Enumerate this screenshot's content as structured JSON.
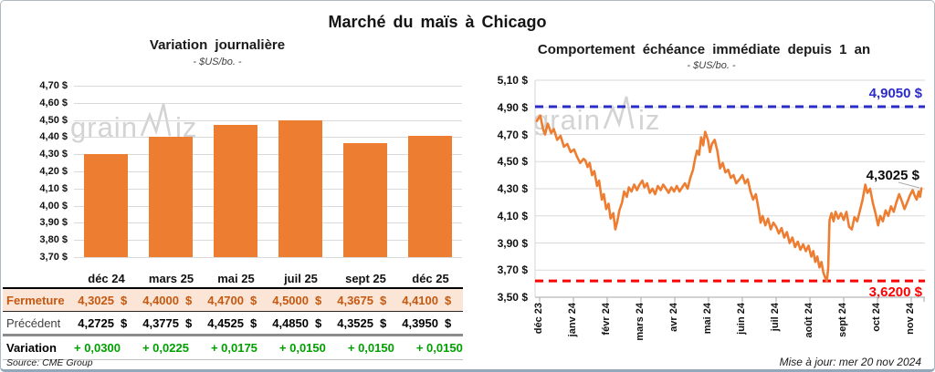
{
  "page": {
    "title": "Marché du maïs à Chicago",
    "source": "Source: CME Group",
    "updated": "Mise à jour: mer 20 nov 2024",
    "watermark": {
      "prefix": "grain",
      "suffix": "iz"
    }
  },
  "colors": {
    "orange": "#ED7D31",
    "blue": "#2B2BC8",
    "red": "#FF0000",
    "green": "#00A000",
    "brown": "#C45911",
    "peach": "#FBE5D6",
    "gridline": "#DADADA",
    "axis": "#A6A6A6",
    "watermark": "#CFCFCF"
  },
  "chart_data": [
    {
      "type": "bar",
      "title": "Variation journalière",
      "subtitle": "- $US/bo. -",
      "categories": [
        "déc 24",
        "mars 25",
        "mai 25",
        "juil 25",
        "sept 25",
        "déc 25"
      ],
      "values": [
        4.3025,
        4.4,
        4.47,
        4.5,
        4.3675,
        4.41
      ],
      "ylabel": "$US/bo.",
      "ylim": [
        3.7,
        4.7
      ],
      "ytick_step": 0.1,
      "grid": true
    },
    {
      "type": "line",
      "title": "Comportement échéance immédiate depuis 1 an",
      "subtitle": "- $US/bo. -",
      "ylabel": "$US/bo.",
      "ylim": [
        3.5,
        5.1
      ],
      "ytick_step": 0.2,
      "x_labels": [
        "déc 23",
        "janv 24",
        "févr 24",
        "mars 24",
        "avr 24",
        "mai 24",
        "juin 24",
        "juil 24",
        "août 24",
        "sept 24",
        "oct 24",
        "nov 24"
      ],
      "last_value": 4.3025,
      "last_label": "4,3025 $",
      "ref_lines": [
        {
          "value": 4.905,
          "label": "4,9050 $",
          "color": "#2B2BC8"
        },
        {
          "value": 3.62,
          "label": "3,6200 $",
          "color": "#FF0000"
        }
      ],
      "points": [
        [
          -0.08,
          4.8
        ],
        [
          0.02,
          4.84
        ],
        [
          0.1,
          4.74
        ],
        [
          0.16,
          4.7
        ],
        [
          0.24,
          4.78
        ],
        [
          0.34,
          4.71
        ],
        [
          0.42,
          4.74
        ],
        [
          0.52,
          4.66
        ],
        [
          0.62,
          4.69
        ],
        [
          0.72,
          4.61
        ],
        [
          0.82,
          4.63
        ],
        [
          0.92,
          4.57
        ],
        [
          1.02,
          4.59
        ],
        [
          1.1,
          4.54
        ],
        [
          1.2,
          4.49
        ],
        [
          1.3,
          4.52
        ],
        [
          1.35,
          4.51
        ],
        [
          1.42,
          4.46
        ],
        [
          1.48,
          4.49
        ],
        [
          1.55,
          4.4
        ],
        [
          1.62,
          4.43
        ],
        [
          1.7,
          4.32
        ],
        [
          1.76,
          4.36
        ],
        [
          1.84,
          4.22
        ],
        [
          1.9,
          4.26
        ],
        [
          1.97,
          4.15
        ],
        [
          2.04,
          4.19
        ],
        [
          2.1,
          4.08
        ],
        [
          2.18,
          4.12
        ],
        [
          2.24,
          4.0
        ],
        [
          2.3,
          4.06
        ],
        [
          2.36,
          4.14
        ],
        [
          2.44,
          4.2
        ],
        [
          2.5,
          4.28
        ],
        [
          2.58,
          4.24
        ],
        [
          2.64,
          4.31
        ],
        [
          2.72,
          4.28
        ],
        [
          2.8,
          4.33
        ],
        [
          2.88,
          4.29
        ],
        [
          2.96,
          4.33
        ],
        [
          3.04,
          4.36
        ],
        [
          3.1,
          4.31
        ],
        [
          3.18,
          4.34
        ],
        [
          3.26,
          4.27
        ],
        [
          3.34,
          4.3
        ],
        [
          3.42,
          4.26
        ],
        [
          3.5,
          4.32
        ],
        [
          3.58,
          4.29
        ],
        [
          3.66,
          4.33
        ],
        [
          3.74,
          4.3
        ],
        [
          3.82,
          4.27
        ],
        [
          3.9,
          4.31
        ],
        [
          3.98,
          4.28
        ],
        [
          4.06,
          4.32
        ],
        [
          4.14,
          4.28
        ],
        [
          4.22,
          4.31
        ],
        [
          4.3,
          4.34
        ],
        [
          4.38,
          4.3
        ],
        [
          4.46,
          4.38
        ],
        [
          4.54,
          4.44
        ],
        [
          4.6,
          4.52
        ],
        [
          4.66,
          4.58
        ],
        [
          4.72,
          4.55
        ],
        [
          4.78,
          4.68
        ],
        [
          4.84,
          4.62
        ],
        [
          4.9,
          4.72
        ],
        [
          4.98,
          4.66
        ],
        [
          5.04,
          4.57
        ],
        [
          5.1,
          4.63
        ],
        [
          5.18,
          4.66
        ],
        [
          5.26,
          4.58
        ],
        [
          5.34,
          4.45
        ],
        [
          5.42,
          4.49
        ],
        [
          5.5,
          4.42
        ],
        [
          5.58,
          4.44
        ],
        [
          5.66,
          4.38
        ],
        [
          5.74,
          4.4
        ],
        [
          5.82,
          4.34
        ],
        [
          5.92,
          4.37
        ],
        [
          6.0,
          4.4
        ],
        [
          6.08,
          4.34
        ],
        [
          6.16,
          4.37
        ],
        [
          6.24,
          4.28
        ],
        [
          6.32,
          4.22
        ],
        [
          6.4,
          4.26
        ],
        [
          6.48,
          4.15
        ],
        [
          6.54,
          4.05
        ],
        [
          6.6,
          4.1
        ],
        [
          6.68,
          4.03
        ],
        [
          6.76,
          4.08
        ],
        [
          6.84,
          4.0
        ],
        [
          6.92,
          4.05
        ],
        [
          7.0,
          4.02
        ],
        [
          7.08,
          3.97
        ],
        [
          7.16,
          4.01
        ],
        [
          7.24,
          3.94
        ],
        [
          7.32,
          3.98
        ],
        [
          7.4,
          3.9
        ],
        [
          7.48,
          3.94
        ],
        [
          7.56,
          3.87
        ],
        [
          7.64,
          3.91
        ],
        [
          7.72,
          3.85
        ],
        [
          7.8,
          3.89
        ],
        [
          7.88,
          3.84
        ],
        [
          7.96,
          3.88
        ],
        [
          8.04,
          3.8
        ],
        [
          8.1,
          3.84
        ],
        [
          8.16,
          3.76
        ],
        [
          8.22,
          3.8
        ],
        [
          8.28,
          3.72
        ],
        [
          8.34,
          3.76
        ],
        [
          8.4,
          3.68
        ],
        [
          8.46,
          3.64
        ],
        [
          8.5,
          3.62
        ],
        [
          8.54,
          3.71
        ],
        [
          8.58,
          4.07
        ],
        [
          8.64,
          4.12
        ],
        [
          8.7,
          4.06
        ],
        [
          8.76,
          4.13
        ],
        [
          8.84,
          4.08
        ],
        [
          8.92,
          4.12
        ],
        [
          9.0,
          4.07
        ],
        [
          9.08,
          4.13
        ],
        [
          9.16,
          4.02
        ],
        [
          9.24,
          4.0
        ],
        [
          9.32,
          4.09
        ],
        [
          9.4,
          4.06
        ],
        [
          9.48,
          4.14
        ],
        [
          9.56,
          4.22
        ],
        [
          9.64,
          4.33
        ],
        [
          9.7,
          4.27
        ],
        [
          9.78,
          4.3
        ],
        [
          9.86,
          4.2
        ],
        [
          9.94,
          4.12
        ],
        [
          10.02,
          4.03
        ],
        [
          10.08,
          4.1
        ],
        [
          10.16,
          4.06
        ],
        [
          10.24,
          4.14
        ],
        [
          10.32,
          4.1
        ],
        [
          10.4,
          4.17
        ],
        [
          10.48,
          4.13
        ],
        [
          10.56,
          4.2
        ],
        [
          10.64,
          4.26
        ],
        [
          10.72,
          4.21
        ],
        [
          10.8,
          4.15
        ],
        [
          10.88,
          4.2
        ],
        [
          10.96,
          4.25
        ],
        [
          11.04,
          4.29
        ],
        [
          11.1,
          4.25
        ],
        [
          11.16,
          4.22
        ],
        [
          11.22,
          4.28
        ],
        [
          11.26,
          4.24
        ],
        [
          11.3,
          4.3025
        ]
      ]
    }
  ],
  "table": {
    "columns": [
      "déc 24",
      "mars 25",
      "mai 25",
      "juil 25",
      "sept 25",
      "déc 25"
    ],
    "rows": [
      {
        "label": "Fermeture",
        "style": "fermeture",
        "values": [
          "4,3025 $",
          "4,4000 $",
          "4,4700 $",
          "4,5000 $",
          "4,3675 $",
          "4,4100 $"
        ]
      },
      {
        "label": "Précédent",
        "style": "precedent",
        "values": [
          "4,2725 $",
          "4,3775 $",
          "4,4525 $",
          "4,4850 $",
          "4,3525 $",
          "4,3950 $"
        ]
      },
      {
        "label": "Variation",
        "style": "variation",
        "values": [
          "+ 0,0300",
          "+ 0,0225",
          "+ 0,0175",
          "+ 0,0150",
          "+ 0,0150",
          "+ 0,0150"
        ]
      }
    ]
  }
}
